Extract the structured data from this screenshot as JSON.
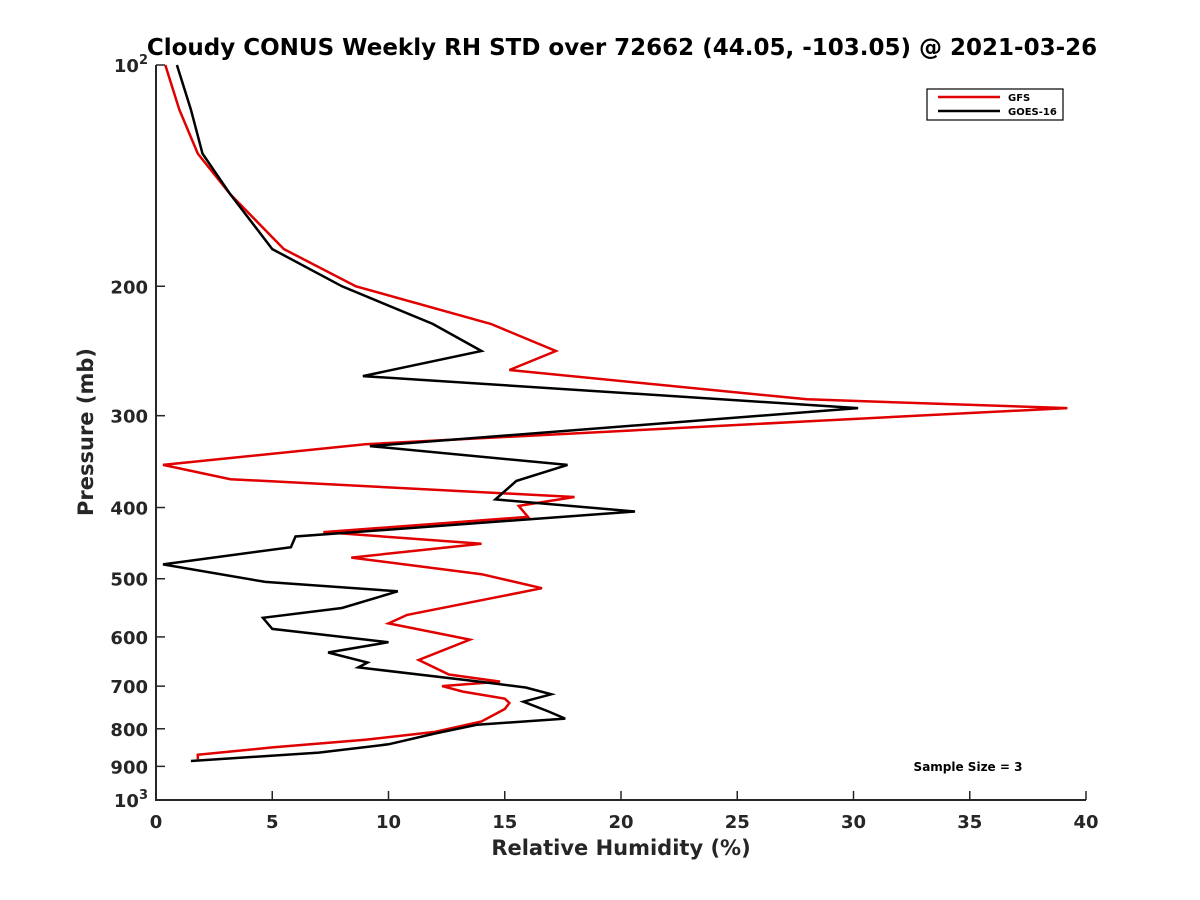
{
  "chart_data": {
    "type": "line",
    "title": "Cloudy CONUS Weekly RH STD over 72662 (44.05, -103.05) @ 2021-03-26",
    "xlabel": "Relative Humidity (%)",
    "ylabel": "Pressure (mb)",
    "xlim": [
      0,
      40
    ],
    "ylim": [
      100,
      1000
    ],
    "y_scale": "log",
    "y_reversed": true,
    "x_ticks": [
      "0",
      "5",
      "10",
      "15",
      "20",
      "25",
      "30",
      "35",
      "40"
    ],
    "y_ticks": [
      {
        "value": 100,
        "base": "10",
        "exp": "2"
      },
      {
        "value": 200,
        "label": "200"
      },
      {
        "value": 300,
        "label": "300"
      },
      {
        "value": 400,
        "label": "400"
      },
      {
        "value": 500,
        "label": "500"
      },
      {
        "value": 600,
        "label": "600"
      },
      {
        "value": 700,
        "label": "700"
      },
      {
        "value": 800,
        "label": "800"
      },
      {
        "value": 900,
        "label": "900"
      },
      {
        "value": 1000,
        "base": "10",
        "exp": "3"
      }
    ],
    "legend_position": "top-right",
    "annotation": "Sample Size = 3",
    "series": [
      {
        "name": "GFS",
        "color": "#e00000",
        "points": [
          [
            0.4,
            100
          ],
          [
            1.0,
            115
          ],
          [
            1.8,
            132
          ],
          [
            3.2,
            150
          ],
          [
            5.5,
            178
          ],
          [
            8.6,
            200
          ],
          [
            14.4,
            225
          ],
          [
            17.2,
            245
          ],
          [
            15.2,
            260
          ],
          [
            28.0,
            285
          ],
          [
            39.2,
            293
          ],
          [
            28.3,
            305
          ],
          [
            9.0,
            328
          ],
          [
            0.3,
            350
          ],
          [
            3.2,
            366
          ],
          [
            18.0,
            387
          ],
          [
            15.6,
            398
          ],
          [
            16.0,
            412
          ],
          [
            7.2,
            432
          ],
          [
            14.0,
            448
          ],
          [
            8.4,
            468
          ],
          [
            14.0,
            493
          ],
          [
            16.6,
            515
          ],
          [
            10.8,
            560
          ],
          [
            10.0,
            575
          ],
          [
            13.5,
            605
          ],
          [
            11.3,
            645
          ],
          [
            12.6,
            675
          ],
          [
            14.8,
            690
          ],
          [
            12.3,
            700
          ],
          [
            13.2,
            712
          ],
          [
            15.0,
            728
          ],
          [
            15.2,
            738
          ],
          [
            15.0,
            752
          ],
          [
            14.0,
            782
          ],
          [
            12.0,
            808
          ],
          [
            9.0,
            828
          ],
          [
            5.0,
            848
          ],
          [
            1.8,
            868
          ],
          [
            1.8,
            880
          ]
        ]
      },
      {
        "name": "GOES-16",
        "color": "#000000",
        "points": [
          [
            0.9,
            100
          ],
          [
            1.5,
            115
          ],
          [
            2.0,
            132
          ],
          [
            3.2,
            150
          ],
          [
            5.0,
            178
          ],
          [
            8.0,
            200
          ],
          [
            11.9,
            225
          ],
          [
            14.0,
            245
          ],
          [
            8.9,
            265
          ],
          [
            30.2,
            293
          ],
          [
            9.2,
            330
          ],
          [
            17.7,
            350
          ],
          [
            15.5,
            368
          ],
          [
            14.6,
            390
          ],
          [
            20.6,
            405
          ],
          [
            6.0,
            438
          ],
          [
            5.8,
            453
          ],
          [
            0.3,
            478
          ],
          [
            4.7,
            505
          ],
          [
            10.4,
            520
          ],
          [
            8.0,
            548
          ],
          [
            4.6,
            565
          ],
          [
            5.0,
            585
          ],
          [
            10.0,
            610
          ],
          [
            7.4,
            630
          ],
          [
            9.1,
            650
          ],
          [
            8.7,
            660
          ],
          [
            13.9,
            690
          ],
          [
            15.9,
            703
          ],
          [
            17.0,
            718
          ],
          [
            15.8,
            735
          ],
          [
            16.9,
            758
          ],
          [
            17.6,
            775
          ],
          [
            13.8,
            790
          ],
          [
            12.0,
            812
          ],
          [
            10.0,
            840
          ],
          [
            7.0,
            862
          ],
          [
            1.5,
            885
          ]
        ]
      }
    ]
  }
}
